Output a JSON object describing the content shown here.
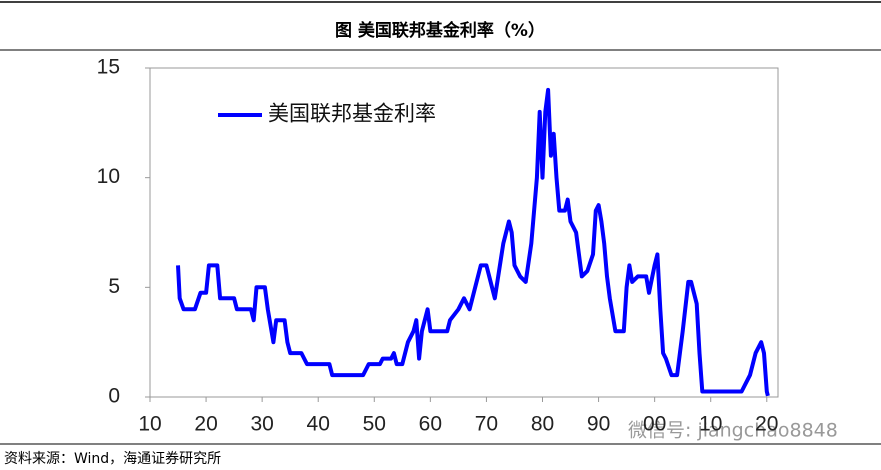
{
  "chart_data": {
    "type": "line",
    "title": "图  美国联邦基金利率（%）",
    "source": "资料来源：Wind，海通证券研究所",
    "watermark": "微信号: jiangchao8848",
    "x": [
      1915,
      1915.3,
      1916,
      1918,
      1919,
      1920,
      1920.5,
      1922,
      1922.5,
      1925,
      1925.5,
      1928,
      1928.5,
      1929,
      1930.5,
      1931,
      1932,
      1932.5,
      1934,
      1934.5,
      1935,
      1937,
      1938,
      1942,
      1942.5,
      1948,
      1949,
      1951,
      1951.5,
      1953,
      1953.5,
      1954,
      1955,
      1956,
      1957,
      1957.5,
      1958,
      1958.5,
      1959.5,
      1960,
      1963,
      1963.5,
      1965,
      1966,
      1967,
      1968,
      1969,
      1970,
      1971,
      1971.5,
      1973,
      1974,
      1974.5,
      1975,
      1976,
      1977,
      1978,
      1979,
      1979.5,
      1980,
      1980.5,
      1981,
      1981.5,
      1982,
      1982.5,
      1983,
      1984,
      1984.5,
      1985,
      1986,
      1987,
      1988,
      1989,
      1989.5,
      1990,
      1990.5,
      1991,
      1991.5,
      1992,
      1993,
      1994.5,
      1995,
      1995.5,
      1996,
      1997,
      1998.5,
      1999,
      2000,
      2000.5,
      2001,
      2001.5,
      2002,
      2003,
      2004,
      2004.5,
      2005,
      2006,
      2006.5,
      2007.5,
      2008,
      2008.5,
      2015.5,
      2016,
      2017,
      2018,
      2019,
      2019.5,
      2020,
      2020.2
    ],
    "series": [
      {
        "name": "美国联邦基金利率",
        "color": "#0000ff",
        "values": [
          6,
          4.5,
          4,
          4,
          4.75,
          4.75,
          6,
          6,
          4.5,
          4.5,
          4,
          4,
          3.5,
          5,
          5,
          4,
          2.5,
          3.5,
          3.5,
          2.5,
          2,
          2,
          1.5,
          1.5,
          1,
          1,
          1.5,
          1.5,
          1.75,
          1.75,
          2,
          1.5,
          1.5,
          2.5,
          3,
          3.5,
          1.75,
          3,
          4,
          3,
          3,
          3.5,
          4,
          4.5,
          4,
          5,
          6,
          6,
          5,
          4.5,
          7,
          8,
          7.5,
          6,
          5.5,
          5.25,
          7,
          10,
          13,
          10,
          13,
          14,
          11,
          12,
          10,
          8.5,
          8.5,
          9,
          8,
          7.5,
          5.5,
          5.75,
          6.5,
          8.5,
          8.75,
          8,
          7,
          5.5,
          4.5,
          3,
          3,
          5,
          6,
          5.25,
          5.5,
          5.5,
          4.75,
          6,
          6.5,
          4,
          2,
          1.75,
          1,
          1,
          2,
          3,
          5.25,
          5.25,
          4.25,
          2,
          0.25,
          0.25,
          0.5,
          1,
          2,
          2.5,
          2,
          0.25,
          0.05
        ]
      }
    ],
    "xlim": [
      1910,
      2022
    ],
    "xticks": [
      {
        "value": 1910,
        "label": "10"
      },
      {
        "value": 1920,
        "label": "20"
      },
      {
        "value": 1930,
        "label": "30"
      },
      {
        "value": 1940,
        "label": "40"
      },
      {
        "value": 1950,
        "label": "50"
      },
      {
        "value": 1960,
        "label": "60"
      },
      {
        "value": 1970,
        "label": "70"
      },
      {
        "value": 1980,
        "label": "80"
      },
      {
        "value": 1990,
        "label": "90"
      },
      {
        "value": 2000,
        "label": "00"
      },
      {
        "value": 2010,
        "label": "10"
      },
      {
        "value": 2020,
        "label": "20"
      }
    ],
    "ylim": [
      0,
      15
    ],
    "yticks": [
      0,
      5,
      10,
      15
    ]
  }
}
